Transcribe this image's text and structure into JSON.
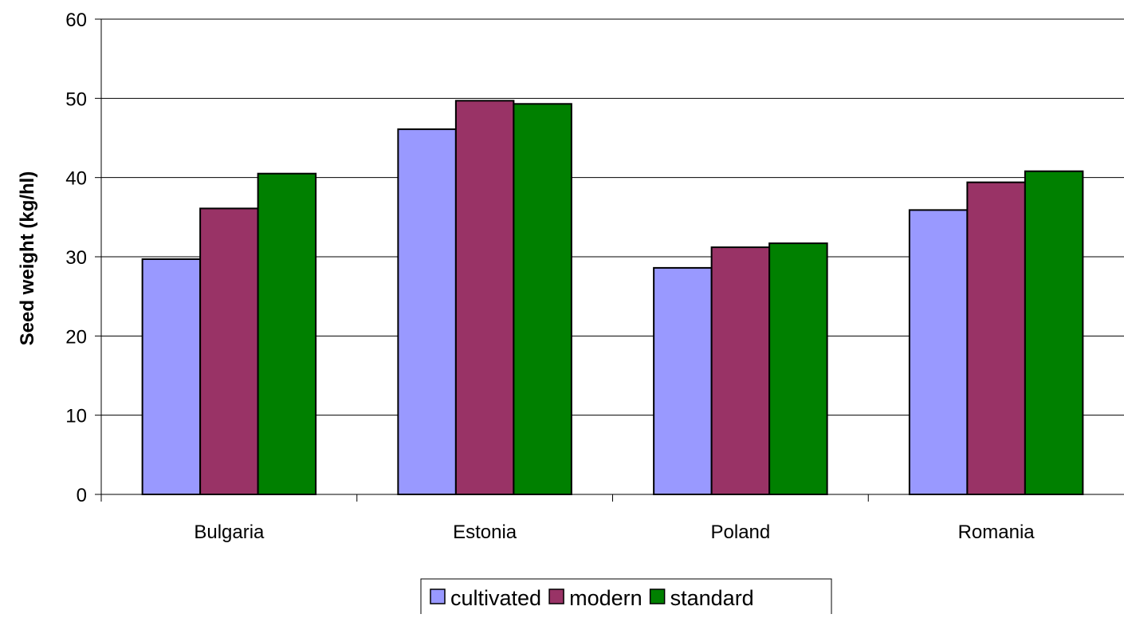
{
  "chart_data": {
    "type": "bar",
    "title": "",
    "xlabel": "",
    "ylabel": "Seed weight (kg/hl)",
    "ylim": [
      0,
      60
    ],
    "yticks": [
      0,
      10,
      20,
      30,
      40,
      50,
      60
    ],
    "grid": true,
    "legend_position": "bottom",
    "categories": [
      "Bulgaria",
      "Estonia",
      "Poland",
      "Romania"
    ],
    "series": [
      {
        "name": "cultivated",
        "color": "#9999ff",
        "values": [
          29.7,
          46.1,
          28.6,
          35.9
        ]
      },
      {
        "name": "modern",
        "color": "#993366",
        "values": [
          36.1,
          49.7,
          31.2,
          39.4
        ]
      },
      {
        "name": "standard",
        "color": "#008000",
        "values": [
          40.5,
          49.3,
          31.7,
          40.8
        ]
      }
    ]
  }
}
